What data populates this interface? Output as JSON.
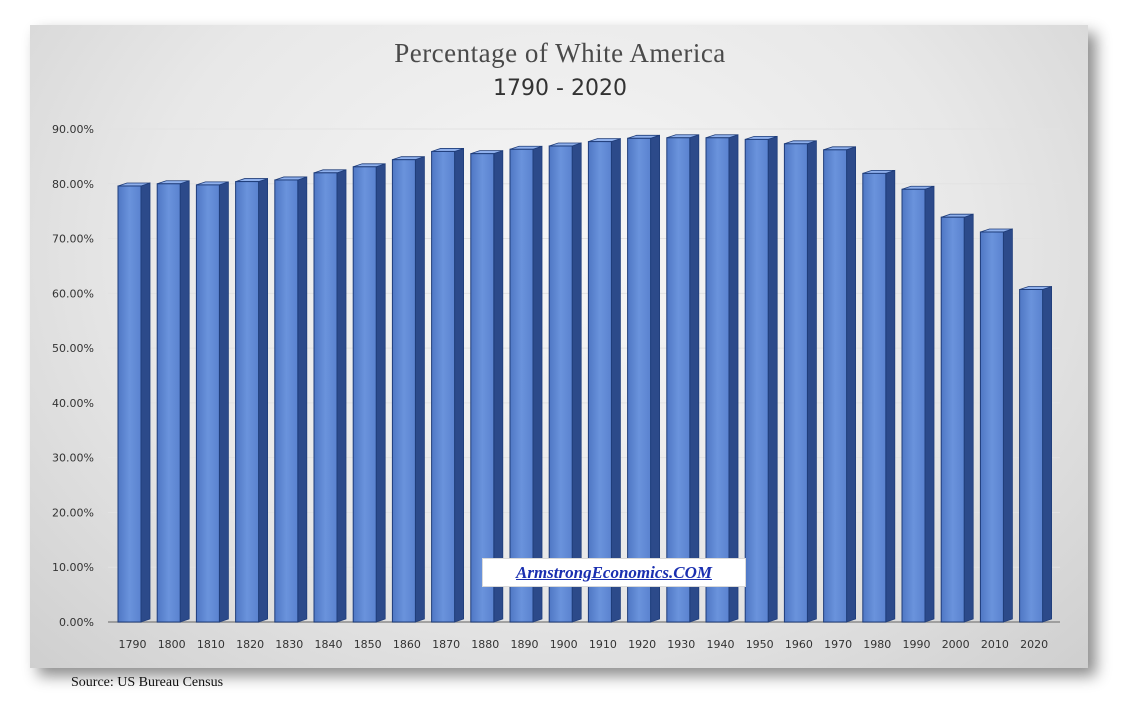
{
  "chart_data": {
    "type": "bar",
    "title": "Percentage of White America",
    "subtitle": "1790 - 2020",
    "xlabel": "",
    "ylabel": "",
    "ylim": [
      0,
      90
    ],
    "yticks": [
      "0.00%",
      "10.00%",
      "20.00%",
      "30.00%",
      "40.00%",
      "50.00%",
      "60.00%",
      "70.00%",
      "80.00%",
      "90.00%"
    ],
    "ytick_values": [
      0,
      10,
      20,
      30,
      40,
      50,
      60,
      70,
      80,
      90
    ],
    "categories": [
      "1790",
      "1800",
      "1810",
      "1820",
      "1830",
      "1840",
      "1850",
      "1860",
      "1870",
      "1880",
      "1890",
      "1900",
      "1910",
      "1920",
      "1930",
      "1940",
      "1950",
      "1960",
      "1970",
      "1980",
      "1990",
      "2000",
      "2010",
      "2020"
    ],
    "values": [
      79.6,
      80.0,
      79.8,
      80.4,
      80.7,
      82.0,
      83.1,
      84.4,
      85.9,
      85.5,
      86.3,
      86.9,
      87.7,
      88.3,
      88.4,
      88.4,
      88.1,
      87.3,
      86.2,
      81.9,
      79.0,
      73.9,
      71.2,
      60.7
    ],
    "bar_color": "#5b84d0",
    "bar_edge_color": "#1f3d7a",
    "grid": true,
    "legend": "none"
  },
  "watermark": "ArmstrongEconomics.COM",
  "source": "Source: US Bureau Census"
}
